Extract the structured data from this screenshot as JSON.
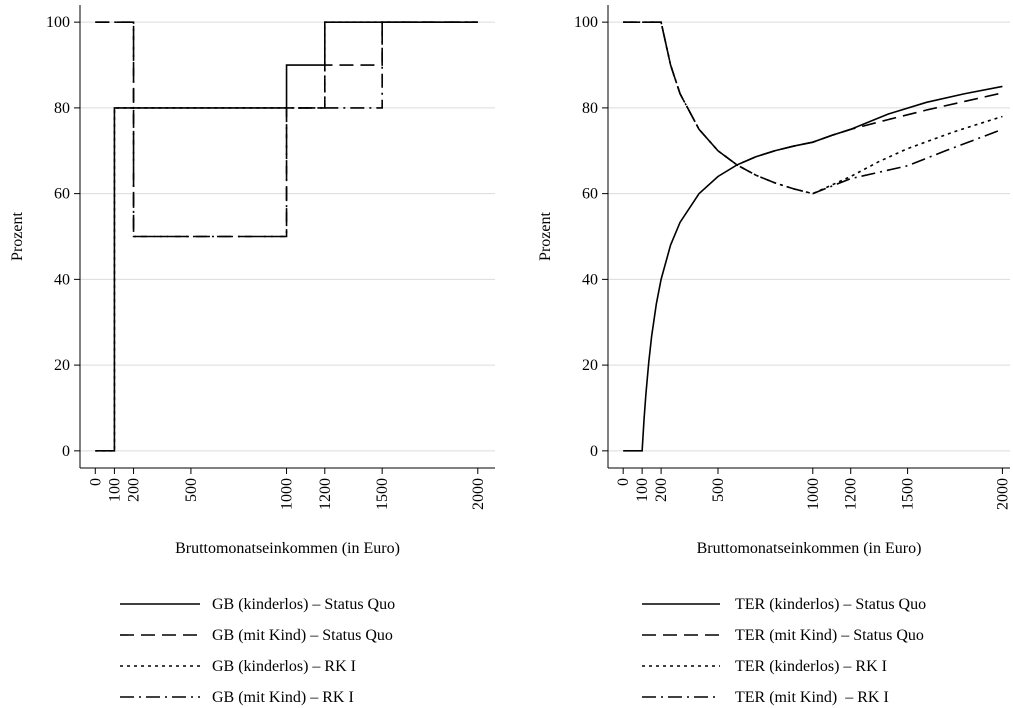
{
  "chart_data": [
    {
      "type": "line",
      "xlabel": "Bruttomonatseinkommen (in Euro)",
      "ylabel": "Prozent",
      "xlim": [
        -80,
        2090
      ],
      "ylim": [
        -4,
        104
      ],
      "xticks": [
        0,
        100,
        200,
        500,
        1000,
        1200,
        1500,
        2000
      ],
      "yticks": [
        0,
        20,
        40,
        60,
        80,
        100
      ],
      "grid": true,
      "series": [
        {
          "name": "GB (kinderlos) – Status Quo",
          "color": "#000000",
          "dash": "solid",
          "x": [
            0,
            100,
            100,
            1000,
            1000,
            1200,
            1200,
            2000
          ],
          "values": [
            0,
            0,
            80,
            80,
            90,
            90,
            100,
            100
          ]
        },
        {
          "name": "GB (mit Kind) – Status Quo",
          "color": "#000000",
          "dash": "dashed",
          "x": [
            0,
            200,
            200,
            1000,
            1000,
            1200,
            1200,
            1500,
            1500,
            2000
          ],
          "values": [
            100,
            100,
            50,
            50,
            80,
            80,
            90,
            90,
            100,
            100
          ]
        },
        {
          "name": "GB (kinderlos) – RK I",
          "color": "#000000",
          "dash": "dotted",
          "x": [
            0,
            100,
            100,
            1200,
            1200,
            2000
          ],
          "values": [
            0,
            0,
            80,
            80,
            100,
            100
          ]
        },
        {
          "name": "GB (mit Kind) – RK I",
          "color": "#000000",
          "dash": "dashdot",
          "x": [
            0,
            200,
            200,
            1000,
            1000,
            1500,
            1500,
            2000
          ],
          "values": [
            100,
            100,
            50,
            50,
            80,
            80,
            100,
            100
          ]
        }
      ]
    },
    {
      "type": "line",
      "xlabel": "Bruttomonatseinkommen (in Euro)",
      "ylabel": "Prozent",
      "xlim": [
        -80,
        2040
      ],
      "ylim": [
        -4,
        104
      ],
      "xticks": [
        0,
        100,
        200,
        500,
        1000,
        1200,
        1500,
        2000
      ],
      "yticks": [
        0,
        20,
        40,
        60,
        80,
        100
      ],
      "grid": true,
      "series": [
        {
          "name": "TER (kinderlos) – Status Quo",
          "color": "#000000",
          "dash": "solid",
          "x": [
            0,
            100,
            110,
            120,
            135,
            150,
            175,
            200,
            250,
            300,
            400,
            500,
            600,
            700,
            800,
            900,
            1000,
            1100,
            1200,
            1400,
            1600,
            1800,
            2000
          ],
          "values": [
            0,
            0,
            7.3,
            13.3,
            20.7,
            26.7,
            34.3,
            40,
            48,
            53.3,
            60,
            64,
            66.7,
            68.6,
            70,
            71.1,
            72,
            73.6,
            75,
            78.6,
            81.3,
            83.3,
            85
          ]
        },
        {
          "name": "TER (mit Kind) – Status Quo",
          "color": "#000000",
          "dash": "dashed",
          "x": [
            0,
            200,
            250,
            300,
            400,
            500,
            600,
            700,
            800,
            900,
            1000,
            1100,
            1200,
            1400,
            1600,
            1800,
            2000
          ],
          "values": [
            100,
            100,
            90,
            83.3,
            75,
            70,
            66.7,
            68.6,
            70,
            71.1,
            72,
            73.6,
            75,
            77.3,
            79.5,
            81.5,
            83.5
          ]
        },
        {
          "name": "TER (kinderlos) – RK I",
          "color": "#000000",
          "dash": "dotted",
          "x": [
            0,
            200,
            250,
            300,
            400,
            500,
            600,
            700,
            800,
            900,
            1000,
            1100,
            1200,
            1350,
            1500,
            1750,
            2000
          ],
          "values": [
            100,
            100,
            90,
            83.3,
            75,
            70,
            66.7,
            64.3,
            62.5,
            61.1,
            60,
            62,
            64,
            67.5,
            70.5,
            74.5,
            78
          ]
        },
        {
          "name": "TER (mit Kind)  – RK I",
          "color": "#000000",
          "dash": "dashdot",
          "x": [
            0,
            200,
            250,
            300,
            400,
            500,
            600,
            700,
            800,
            900,
            1000,
            1200,
            1500,
            1700,
            2000
          ],
          "values": [
            100,
            100,
            90,
            83.3,
            75,
            70,
            66.7,
            64.3,
            62.5,
            61.1,
            60,
            63.5,
            66.5,
            70,
            75
          ]
        }
      ]
    }
  ]
}
